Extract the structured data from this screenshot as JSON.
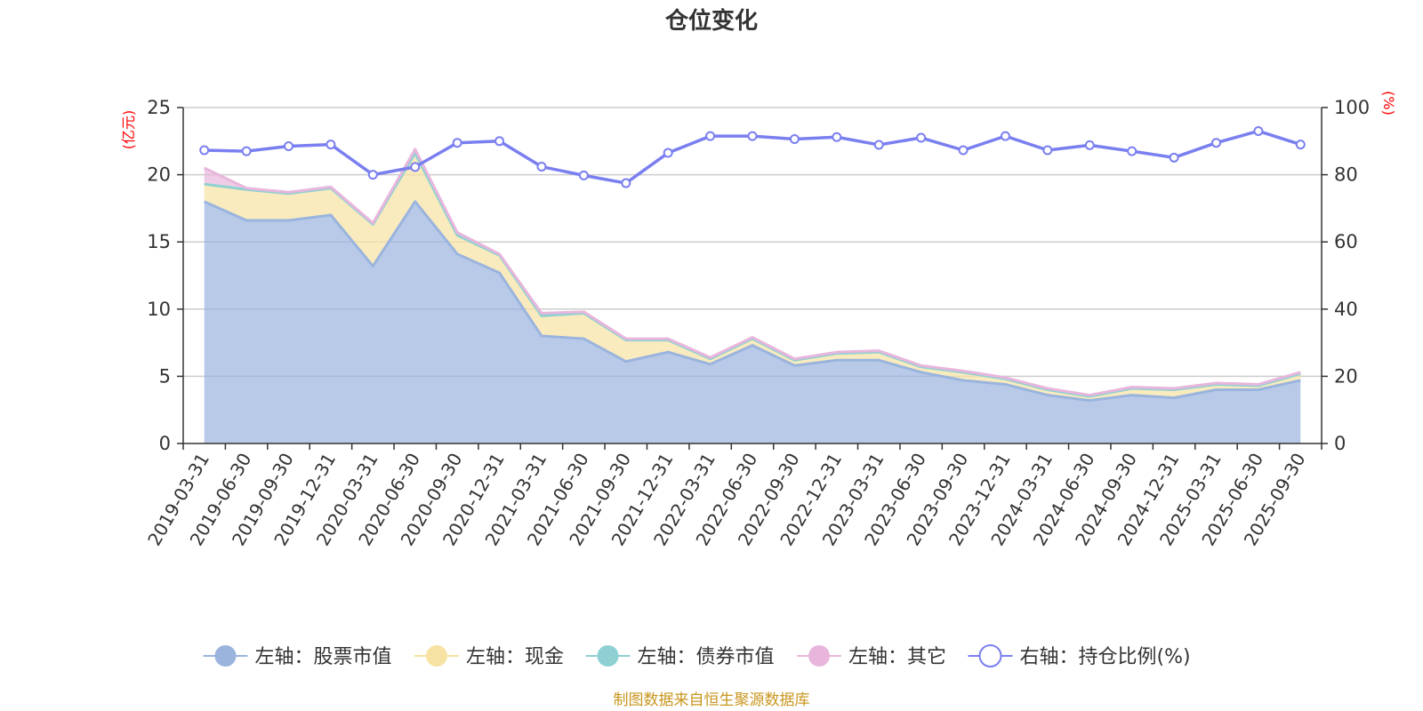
{
  "chart_data": {
    "type": "area",
    "title": "仓位变化",
    "left_axis_unit": "(亿元)",
    "right_axis_unit": "(%)",
    "ylim_left": [
      0,
      25
    ],
    "ylim_right": [
      0,
      100
    ],
    "yticks_left": [
      "0",
      "5",
      "10",
      "15",
      "20",
      "25"
    ],
    "yticks_right": [
      "0",
      "20",
      "40",
      "60",
      "80",
      "100"
    ],
    "categories": [
      "2019-03-31",
      "2019-06-30",
      "2019-09-30",
      "2019-12-31",
      "2020-03-31",
      "2020-06-30",
      "2020-09-30",
      "2020-12-31",
      "2021-03-31",
      "2021-06-30",
      "2021-09-30",
      "2021-12-31",
      "2022-03-31",
      "2022-06-30",
      "2022-09-30",
      "2022-12-31",
      "2023-03-31",
      "2023-06-30",
      "2023-09-30",
      "2023-12-31",
      "2024-03-31",
      "2024-06-30",
      "2024-09-30",
      "2024-12-31",
      "2025-03-31",
      "2025-06-30",
      "2025-09-30"
    ],
    "series": [
      {
        "name": "左轴：股票市值",
        "axis": "left",
        "stack": true,
        "color": "#9ab4de",
        "values": [
          18.0,
          16.6,
          16.6,
          17.0,
          13.2,
          18.0,
          14.1,
          12.7,
          8.0,
          7.8,
          6.1,
          6.8,
          5.9,
          7.3,
          5.8,
          6.2,
          6.2,
          5.3,
          4.7,
          4.4,
          3.6,
          3.2,
          3.6,
          3.4,
          4.0,
          4.0,
          4.7
        ]
      },
      {
        "name": "左轴：现金",
        "axis": "left",
        "stack": true,
        "color": "#f6e2a2",
        "values": [
          1.3,
          2.3,
          2.0,
          2.0,
          3.1,
          3.6,
          1.4,
          1.3,
          1.5,
          1.9,
          1.6,
          0.9,
          0.4,
          0.5,
          0.4,
          0.5,
          0.6,
          0.4,
          0.6,
          0.4,
          0.4,
          0.3,
          0.5,
          0.6,
          0.4,
          0.3,
          0.5
        ]
      },
      {
        "name": "左轴：债券市值",
        "axis": "left",
        "stack": true,
        "color": "#8fd1d3",
        "values": [
          0,
          0,
          0,
          0,
          0,
          0,
          0,
          0,
          0,
          0,
          0,
          0,
          0,
          0,
          0,
          0,
          0,
          0,
          0,
          0,
          0,
          0,
          0,
          0,
          0,
          0,
          0
        ]
      },
      {
        "name": "左轴：其它",
        "axis": "left",
        "stack": true,
        "color": "#e8b6dc",
        "values": [
          1.2,
          0.1,
          0.1,
          0.1,
          0.1,
          0.3,
          0.2,
          0.1,
          0.2,
          0.1,
          0.1,
          0.1,
          0.1,
          0.1,
          0.1,
          0.1,
          0.1,
          0.1,
          0.1,
          0.1,
          0.1,
          0.1,
          0.1,
          0.1,
          0.1,
          0.1,
          0.1
        ]
      },
      {
        "name": "右轴：持仓比例(%)",
        "axis": "right",
        "type": "line",
        "color": "#7a7ff0",
        "values": [
          87.3,
          87.0,
          88.5,
          89.0,
          80.0,
          82.3,
          89.5,
          90.0,
          82.4,
          79.8,
          77.5,
          86.5,
          91.5,
          91.5,
          90.6,
          91.2,
          88.9,
          91.0,
          87.3,
          91.5,
          87.3,
          88.8,
          87.0,
          85.1,
          89.5,
          93.0,
          89.0
        ]
      }
    ],
    "legend_position": "bottom",
    "grid": true
  },
  "source_note": "制图数据来自恒生聚源数据库"
}
